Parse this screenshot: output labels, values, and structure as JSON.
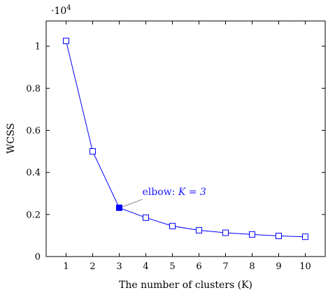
{
  "chart_data": {
    "type": "line",
    "title": "",
    "xlabel": "The number of clusters (K)",
    "ylabel": "WCSS",
    "y_scale_factor": "·10",
    "y_scale_exponent": "4",
    "x": [
      1,
      2,
      3,
      4,
      5,
      6,
      7,
      8,
      9,
      10
    ],
    "series": [
      {
        "values": [
          1.025,
          0.5,
          0.232,
          0.185,
          0.145,
          0.125,
          0.113,
          0.105,
          0.098,
          0.094
        ],
        "color": "#0000ff",
        "marker": "open-square"
      }
    ],
    "x_ticks": [
      "1",
      "2",
      "3",
      "4",
      "5",
      "6",
      "7",
      "8",
      "9",
      "10"
    ],
    "y_ticks": [
      0,
      0.2,
      0.4,
      0.6,
      0.8,
      1
    ],
    "y_tick_labels": [
      "0",
      "0.2",
      "0.4",
      "0.6",
      "0.8",
      "1"
    ],
    "xlim": [
      0.25,
      10.75
    ],
    "ylim": [
      0,
      1.12
    ],
    "grid": false,
    "annotation": {
      "text_prefix": "elbow: ",
      "text_math": "K = 3",
      "point_index": 2,
      "color": "#0000ff"
    }
  }
}
